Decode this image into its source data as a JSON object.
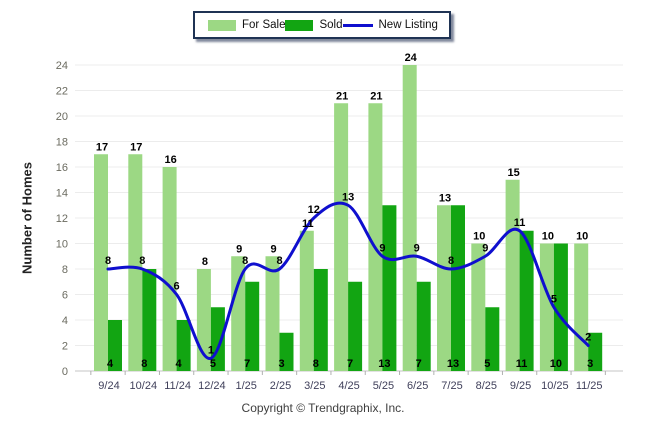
{
  "legend": {
    "items": [
      {
        "label": "For Sale",
        "swatch": "bar",
        "color": "#9CD884"
      },
      {
        "label": "Sold",
        "swatch": "bar",
        "color": "#12A512"
      },
      {
        "label": "New Listing",
        "swatch": "line",
        "color": "#0F0FCE"
      }
    ]
  },
  "y_axis_title": "Number of Homes",
  "footer": {
    "copyright": "Copyright © Trendgraphix, Inc."
  },
  "chart_data": {
    "type": "bar+line",
    "title": "",
    "ylabel": "Number of Homes",
    "xlabel": "",
    "ylim": [
      0,
      24
    ],
    "ytick_step": 2,
    "grid": true,
    "legend_position": "top-center",
    "categories": [
      "9/24",
      "10/24",
      "11/24",
      "12/24",
      "1/25",
      "2/25",
      "3/25",
      "4/25",
      "5/25",
      "6/25",
      "7/25",
      "8/25",
      "9/25",
      "10/25",
      "11/25"
    ],
    "series": [
      {
        "name": "For Sale",
        "type": "bar",
        "color": "#9CD884",
        "values": [
          17,
          17,
          16,
          8,
          9,
          9,
          11,
          21,
          21,
          24,
          13,
          10,
          15,
          10,
          10
        ]
      },
      {
        "name": "Sold",
        "type": "bar",
        "color": "#12A512",
        "values": [
          4,
          8,
          4,
          5,
          7,
          3,
          8,
          7,
          13,
          7,
          13,
          5,
          11,
          10,
          3
        ]
      },
      {
        "name": "New Listing",
        "type": "line",
        "color": "#0F0FCE",
        "values": [
          8,
          8,
          6,
          1,
          8,
          8,
          12,
          13,
          9,
          9,
          8,
          9,
          11,
          5,
          2
        ]
      }
    ],
    "colors": {
      "grid_line": "#ececec",
      "zero_line": "#c4c4c4",
      "tick_mark": "#b0b0b0",
      "value_label": "#000000",
      "y_tick_label": "#6b6b60",
      "x_tick_label": "#3f3f5a"
    }
  }
}
